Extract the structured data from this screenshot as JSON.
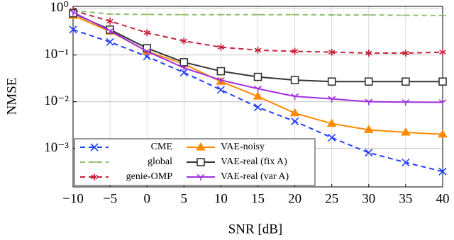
{
  "chart_data": {
    "type": "line",
    "xlabel": "SNR [dB]",
    "ylabel": "NMSE",
    "x": [
      -10,
      -5,
      0,
      5,
      10,
      15,
      20,
      25,
      30,
      35,
      40
    ],
    "xlim": [
      -10,
      40
    ],
    "xticks": [
      {
        "value": -10,
        "label": "−10"
      },
      {
        "value": -5,
        "label": "−5"
      },
      0,
      5,
      10,
      15,
      20,
      25,
      30,
      35,
      40
    ],
    "ylim": [
      0.00015,
      1.1
    ],
    "log_y": true,
    "yticks": [
      {
        "value": 1,
        "label": "10⁰"
      },
      {
        "value": 0.1,
        "label": "10⁻¹"
      },
      {
        "value": 0.01,
        "label": "10⁻²"
      },
      {
        "value": 0.001,
        "label": "10⁻³"
      }
    ],
    "grid": true,
    "legend": "lower left",
    "series": [
      {
        "name": "CME",
        "color": "#1f3fff",
        "style": "dashed",
        "marker": "x",
        "values": [
          0.35,
          0.19,
          0.093,
          0.042,
          0.018,
          0.0076,
          0.0038,
          0.0017,
          0.00081,
          0.0005,
          0.00032
        ]
      },
      {
        "name": "global",
        "color": "#8fbf6f",
        "style": "dashed",
        "marker": "dash",
        "values": [
          0.9,
          0.75,
          0.74,
          0.73,
          0.73,
          0.73,
          0.73,
          0.72,
          0.72,
          0.71,
          0.7
        ]
      },
      {
        "name": "genie-OMP",
        "color": "#c8203a",
        "style": "dashed",
        "marker": "star",
        "values": [
          0.9,
          0.53,
          0.3,
          0.2,
          0.147,
          0.127,
          0.12,
          0.115,
          0.11,
          0.11,
          0.115
        ]
      },
      {
        "name": "VAE-noisy",
        "color": "#ff8a00",
        "style": "solid",
        "marker": "triangle",
        "values": [
          0.7,
          0.32,
          0.12,
          0.064,
          0.027,
          0.013,
          0.0057,
          0.0034,
          0.0025,
          0.0022,
          0.002
        ]
      },
      {
        "name": "VAE-real (fix A)",
        "color": "#333333",
        "style": "solid",
        "marker": "square",
        "values": [
          0.78,
          0.35,
          0.14,
          0.07,
          0.045,
          0.034,
          0.029,
          0.027,
          0.027,
          0.027,
          0.027
        ]
      },
      {
        "name": "VAE-real (var A)",
        "color": "#a030e0",
        "style": "solid",
        "marker": "tri",
        "values": [
          0.82,
          0.33,
          0.12,
          0.053,
          0.029,
          0.019,
          0.013,
          0.0115,
          0.01,
          0.0098,
          0.0097
        ]
      }
    ]
  }
}
